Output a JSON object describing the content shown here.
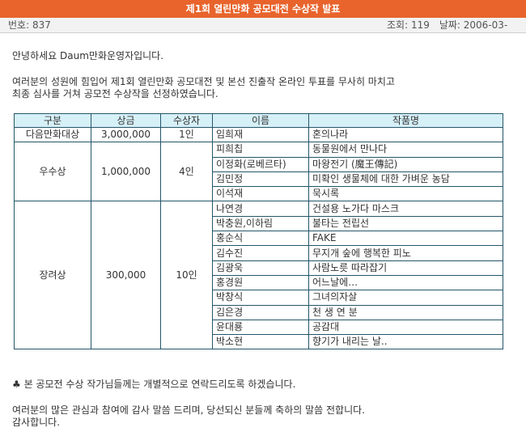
{
  "header": {
    "title": "제1회 열린만화 공모대전 수상작 발표"
  },
  "info": {
    "number": "번호: 837",
    "views": "조회: 119",
    "date": "날짜: 2006-03-"
  },
  "body": {
    "greeting": "안녕하세요 Daum만화운영자입니다.",
    "intro": [
      "여러분의 성원에 힘입어 제1회 열린만화 공모대전 및 본선 진출작 온라인 투표를 무사히 마치고",
      "최종 심사를 거쳐 공모전 수상작을 선정하였습니다."
    ]
  },
  "table": {
    "header": [
      "구분",
      "상금",
      "수상자",
      "이름",
      "작품명"
    ],
    "groups": [
      {
        "category": "다음만화대상",
        "prize": "3,000,000",
        "count": "1인",
        "winners": [
          {
            "name": "임희재",
            "work": "혼의나라"
          }
        ]
      },
      {
        "category": "우수상",
        "prize": "1,000,000",
        "count": "4인",
        "winners": [
          {
            "name": "피희칩",
            "work": "동물원에서 만나다"
          },
          {
            "name": "이정화(로베르타)",
            "work": "마왕전기 (魔王傳記)"
          },
          {
            "name": "김민정",
            "work": "미확인 생물체에 대한 가벼운 농담"
          },
          {
            "name": "이석재",
            "work": "묵시록"
          }
        ]
      },
      {
        "category": "장려상",
        "prize": "300,000",
        "count": "10인",
        "winners": [
          {
            "name": "나연경",
            "work": "건설용 노가다 마스크"
          },
          {
            "name": "박충원,이하림",
            "work": "불타는 전립선"
          },
          {
            "name": "홍순식",
            "work": "FAKE"
          },
          {
            "name": "김수진",
            "work": "무지개 숲에 행복한 피노"
          },
          {
            "name": "김광욱",
            "work": "사람노릇 따라잡기"
          },
          {
            "name": "홍경원",
            "work": "어느날에…"
          },
          {
            "name": "박창식",
            "work": "그녀의자살"
          },
          {
            "name": "김은경",
            "work": "천 생 연 분"
          },
          {
            "name": "윤대룡",
            "work": "공감대"
          },
          {
            "name": "박소현",
            "work": "향기가 내리는 날.."
          }
        ]
      }
    ]
  },
  "footer": {
    "notice": "♣ 본 공모전 수상 작가님들께는 개별적으로 연락드리도록 하겠습니다.",
    "closing": [
      "여러분의 많은 관심과 참여에 감사 말씀 드리며, 당선되신 분들께 축하의 말씀 전합니다.",
      "감사합니다."
    ]
  }
}
